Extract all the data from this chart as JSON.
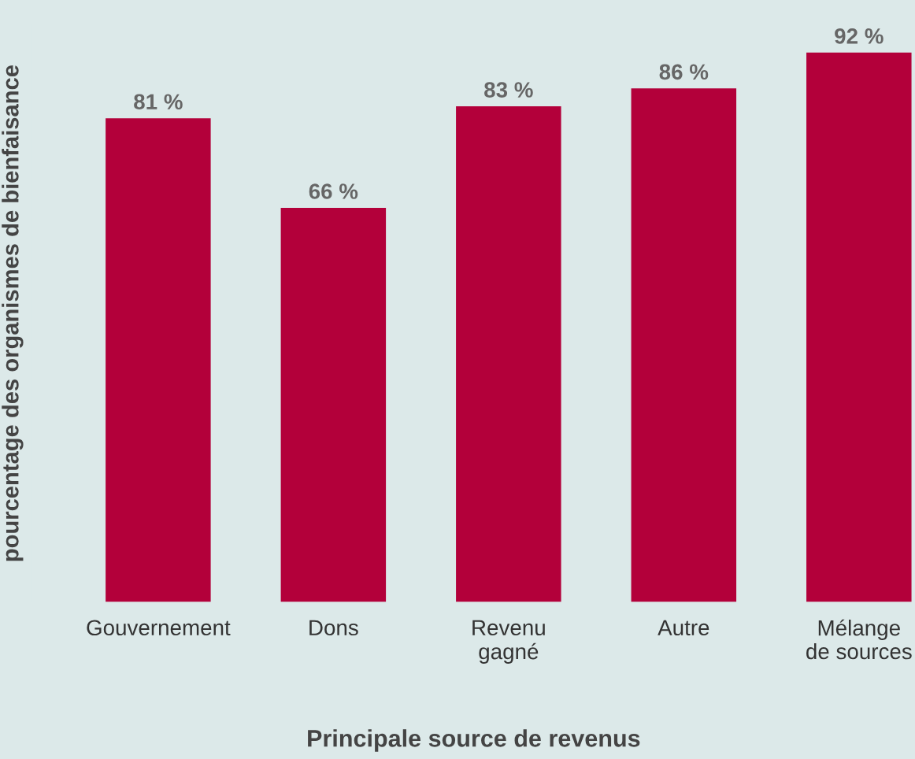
{
  "chart_data": {
    "type": "bar",
    "categories": [
      "Gouvernement",
      "Dons",
      "Revenu\ngagné",
      "Autre",
      "Mélange\nde sources"
    ],
    "values": [
      81,
      66,
      83,
      86,
      92
    ],
    "value_labels": [
      "81 %",
      "66 %",
      "83 %",
      "86 %",
      "92 %"
    ],
    "color": "#b3003a",
    "xlabel": "Principale source de revenus",
    "ylabel": "pourcentage des organismes de bienfaisance",
    "grid": false,
    "legend": false
  }
}
